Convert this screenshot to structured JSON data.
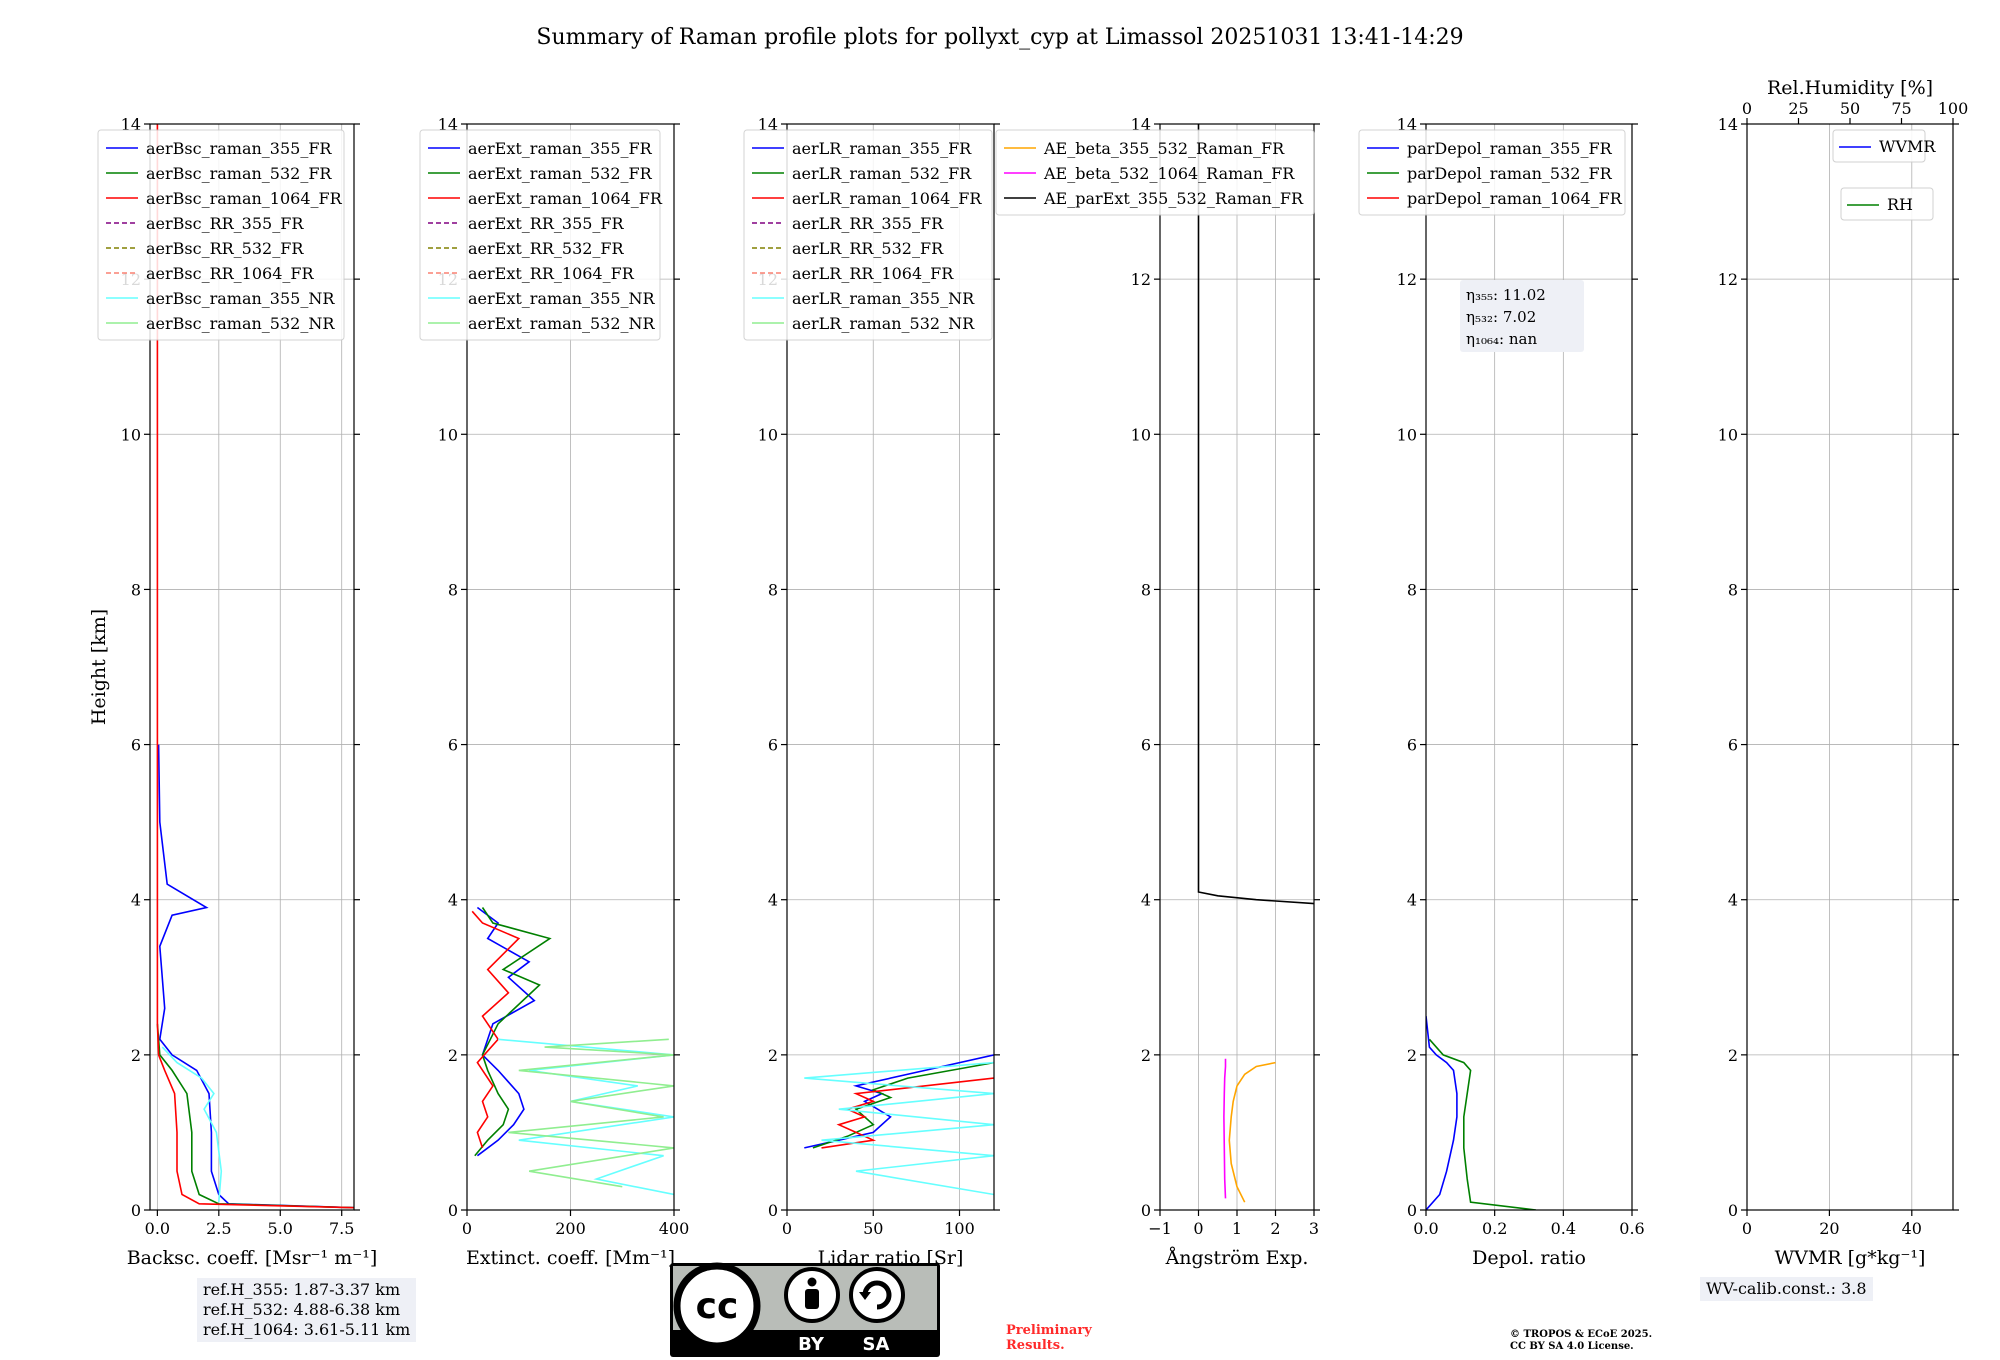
{
  "figure_title": "Summary of Raman profile plots for pollyxt_cyp at Limassol 20251031 13:41-14:29",
  "colors": {
    "blue": "#0000ff",
    "green": "#008000",
    "red": "#ff0000",
    "purple": "#800080",
    "olive": "#808000",
    "salmon": "#fa8072",
    "cyan": "#66ffff",
    "lightgreen": "#90ee90",
    "orange": "#ffa500",
    "magenta": "#ff00ff",
    "black": "#000000",
    "grid": "#b0b0b0"
  },
  "chart_data": [
    {
      "type": "line",
      "title": "",
      "xlabel": "Backsc. coeff. [Msr⁻¹ m⁻¹]",
      "ylabel": "Height [km]",
      "xlim": [
        -0.3,
        8.0
      ],
      "ylim": [
        0,
        14
      ],
      "xticks": [
        0.0,
        2.5,
        5.0,
        7.5
      ],
      "xtick_labels": [
        "0.0",
        "2.5",
        "5.0",
        "7.5"
      ],
      "yticks": [
        0,
        2,
        4,
        6,
        8,
        10,
        12,
        14
      ],
      "ytick_labels": [
        "0",
        "2",
        "4",
        "6",
        "8",
        "10",
        "12",
        "14"
      ],
      "grid": true,
      "legend_position": "top-left",
      "legend": [
        {
          "label": "aerBsc_raman_355_FR",
          "color": "#0000ff",
          "style": "solid"
        },
        {
          "label": "aerBsc_raman_532_FR",
          "color": "#008000",
          "style": "solid"
        },
        {
          "label": "aerBsc_raman_1064_FR",
          "color": "#ff0000",
          "style": "solid"
        },
        {
          "label": "aerBsc_RR_355_FR",
          "color": "#800080",
          "style": "dashed"
        },
        {
          "label": "aerBsc_RR_532_FR",
          "color": "#808000",
          "style": "dashed"
        },
        {
          "label": "aerBsc_RR_1064_FR",
          "color": "#fa8072",
          "style": "dashed"
        },
        {
          "label": "aerBsc_raman_355_NR",
          "color": "#66ffff",
          "style": "solid"
        },
        {
          "label": "aerBsc_raman_532_NR",
          "color": "#90ee90",
          "style": "solid"
        }
      ],
      "series": [
        {
          "name": "aerBsc_raman_355_FR",
          "color": "#0000ff",
          "x": [
            8,
            2.9,
            2.5,
            2.2,
            2.2,
            2.1,
            1.6,
            0.6,
            0.1,
            0.3,
            0.1,
            0.6,
            2,
            0.4,
            0.1,
            0.05
          ],
          "y": [
            0.03,
            0.08,
            0.2,
            0.5,
            1.0,
            1.5,
            1.8,
            2.0,
            2.2,
            2.6,
            3.4,
            3.8,
            3.9,
            4.2,
            5,
            6
          ]
        },
        {
          "name": "aerBsc_raman_532_FR",
          "color": "#008000",
          "x": [
            8,
            2.5,
            1.7,
            1.4,
            1.4,
            1.2,
            0.6,
            0.1,
            0.0
          ],
          "y": [
            0.03,
            0.08,
            0.2,
            0.5,
            1.0,
            1.5,
            1.8,
            2.0,
            2.4
          ]
        },
        {
          "name": "aerBsc_raman_1064_FR",
          "color": "#ff0000",
          "x": [
            8,
            1.7,
            1.0,
            0.8,
            0.8,
            0.7,
            0.3,
            0.05,
            0.0,
            0.0
          ],
          "y": [
            0.03,
            0.08,
            0.2,
            0.5,
            1.0,
            1.5,
            1.8,
            2.0,
            2.4,
            14
          ]
        },
        {
          "name": "aerBsc_raman_355_NR",
          "color": "#66ffff",
          "x": [
            2.5,
            2.6,
            2.4,
            1.9,
            2.3,
            1.8,
            0.8,
            0.2
          ],
          "y": [
            0.1,
            0.5,
            1.0,
            1.3,
            1.5,
            1.7,
            1.9,
            2.1
          ]
        }
      ]
    },
    {
      "type": "line",
      "title": "",
      "xlabel": "Extinct. coeff. [Mm⁻¹]",
      "ylabel": "",
      "xlim": [
        0,
        400
      ],
      "ylim": [
        0,
        14
      ],
      "xticks": [
        0,
        200,
        400
      ],
      "xtick_labels": [
        "0",
        "200",
        "400"
      ],
      "yticks": [
        0,
        2,
        4,
        6,
        8,
        10,
        12,
        14
      ],
      "ytick_labels": [
        "0",
        "2",
        "4",
        "6",
        "8",
        "10",
        "12",
        "14"
      ],
      "grid": true,
      "legend_position": "top-left",
      "legend": [
        {
          "label": "aerExt_raman_355_FR",
          "color": "#0000ff",
          "style": "solid"
        },
        {
          "label": "aerExt_raman_532_FR",
          "color": "#008000",
          "style": "solid"
        },
        {
          "label": "aerExt_raman_1064_FR",
          "color": "#ff0000",
          "style": "solid"
        },
        {
          "label": "aerExt_RR_355_FR",
          "color": "#800080",
          "style": "dashed"
        },
        {
          "label": "aerExt_RR_532_FR",
          "color": "#808000",
          "style": "dashed"
        },
        {
          "label": "aerExt_RR_1064_FR",
          "color": "#fa8072",
          "style": "dashed"
        },
        {
          "label": "aerExt_raman_355_NR",
          "color": "#66ffff",
          "style": "solid"
        },
        {
          "label": "aerExt_raman_532_NR",
          "color": "#90ee90",
          "style": "solid"
        }
      ],
      "series": [
        {
          "name": "aerExt_raman_355_FR",
          "color": "#0000ff",
          "x": [
            20,
            60,
            90,
            110,
            100,
            60,
            30,
            50,
            130,
            80,
            120,
            40,
            60,
            20
          ],
          "y": [
            0.7,
            0.9,
            1.1,
            1.3,
            1.5,
            1.8,
            2.0,
            2.4,
            2.7,
            3.0,
            3.2,
            3.5,
            3.7,
            3.9
          ]
        },
        {
          "name": "aerExt_raman_532_FR",
          "color": "#008000",
          "x": [
            15,
            40,
            70,
            80,
            60,
            40,
            30,
            60,
            140,
            70,
            160,
            50,
            30
          ],
          "y": [
            0.7,
            0.9,
            1.1,
            1.3,
            1.5,
            1.8,
            2.0,
            2.4,
            2.9,
            3.1,
            3.5,
            3.7,
            3.9
          ]
        },
        {
          "name": "aerExt_raman_1064_FR",
          "color": "#ff0000",
          "x": [
            30,
            20,
            40,
            30,
            50,
            20,
            60,
            30,
            80,
            40,
            100,
            30,
            10
          ],
          "y": [
            0.8,
            1.0,
            1.2,
            1.4,
            1.6,
            1.9,
            2.2,
            2.5,
            2.8,
            3.1,
            3.5,
            3.7,
            3.85
          ]
        },
        {
          "name": "aerExt_raman_355_NR",
          "color": "#66ffff",
          "x": [
            400,
            250,
            380,
            100,
            400,
            200,
            330,
            120,
            400,
            60
          ],
          "y": [
            0.2,
            0.4,
            0.7,
            0.9,
            1.2,
            1.4,
            1.6,
            1.8,
            2.0,
            2.2
          ]
        },
        {
          "name": "aerExt_raman_532_NR",
          "color": "#90ee90",
          "x": [
            300,
            120,
            400,
            80,
            380,
            200,
            400,
            100,
            400,
            150,
            390
          ],
          "y": [
            0.3,
            0.5,
            0.8,
            1.0,
            1.2,
            1.4,
            1.6,
            1.8,
            2.0,
            2.1,
            2.2
          ]
        }
      ]
    },
    {
      "type": "line",
      "title": "",
      "xlabel": "Lidar ratio [Sr]",
      "ylabel": "",
      "xlim": [
        0,
        120
      ],
      "ylim": [
        0,
        14
      ],
      "xticks": [
        0,
        50,
        100
      ],
      "xtick_labels": [
        "0",
        "50",
        "100"
      ],
      "yticks": [
        0,
        2,
        4,
        6,
        8,
        10,
        12,
        14
      ],
      "ytick_labels": [
        "0",
        "2",
        "4",
        "6",
        "8",
        "10",
        "12",
        "14"
      ],
      "grid": true,
      "legend_position": "top-left",
      "legend": [
        {
          "label": "aerLR_raman_355_FR",
          "color": "#0000ff",
          "style": "solid"
        },
        {
          "label": "aerLR_raman_532_FR",
          "color": "#008000",
          "style": "solid"
        },
        {
          "label": "aerLR_raman_1064_FR",
          "color": "#ff0000",
          "style": "solid"
        },
        {
          "label": "aerLR_RR_355_FR",
          "color": "#800080",
          "style": "dashed"
        },
        {
          "label": "aerLR_RR_532_FR",
          "color": "#808000",
          "style": "dashed"
        },
        {
          "label": "aerLR_RR_1064_FR",
          "color": "#fa8072",
          "style": "dashed"
        },
        {
          "label": "aerLR_raman_355_NR",
          "color": "#66ffff",
          "style": "solid"
        },
        {
          "label": "aerLR_raman_532_NR",
          "color": "#90ee90",
          "style": "solid"
        }
      ],
      "series": [
        {
          "name": "aerLR_raman_355_FR",
          "color": "#0000ff",
          "x": [
            10,
            30,
            50,
            60,
            45,
            55,
            40,
            80,
            120
          ],
          "y": [
            0.8,
            0.9,
            1.0,
            1.2,
            1.4,
            1.5,
            1.6,
            1.8,
            2.0
          ]
        },
        {
          "name": "aerLR_raman_532_FR",
          "color": "#008000",
          "x": [
            15,
            35,
            50,
            40,
            60,
            50,
            70,
            120
          ],
          "y": [
            0.8,
            0.95,
            1.1,
            1.3,
            1.45,
            1.55,
            1.7,
            1.9
          ]
        },
        {
          "name": "aerLR_raman_1064_FR",
          "color": "#ff0000",
          "x": [
            20,
            50,
            40,
            30,
            45,
            35,
            50,
            40,
            120
          ],
          "y": [
            0.8,
            0.9,
            1.0,
            1.1,
            1.2,
            1.3,
            1.4,
            1.5,
            1.7
          ]
        },
        {
          "name": "aerLR_raman_355_NR",
          "color": "#66ffff",
          "x": [
            120,
            40,
            120,
            20,
            120,
            30,
            120,
            10,
            120
          ],
          "y": [
            0.2,
            0.5,
            0.7,
            0.9,
            1.1,
            1.3,
            1.5,
            1.7,
            1.9
          ]
        }
      ]
    },
    {
      "type": "line",
      "title": "",
      "xlabel": "Ångström Exp.",
      "ylabel": "",
      "xlim": [
        -1,
        3
      ],
      "ylim": [
        0,
        14
      ],
      "xticks": [
        -1,
        0,
        1,
        2,
        3
      ],
      "xtick_labels": [
        "−1",
        "0",
        "1",
        "2",
        "3"
      ],
      "yticks": [
        0,
        2,
        4,
        6,
        8,
        10,
        12,
        14
      ],
      "ytick_labels": [
        "0",
        "2",
        "4",
        "6",
        "8",
        "10",
        "12",
        "14"
      ],
      "grid": true,
      "legend_position": "top",
      "legend": [
        {
          "label": "AE_beta_355_532_Raman_FR",
          "color": "#ffa500",
          "style": "solid"
        },
        {
          "label": "AE_beta_532_1064_Raman_FR",
          "color": "#ff00ff",
          "style": "solid"
        },
        {
          "label": "AE_parExt_355_532_Raman_FR",
          "color": "#000000",
          "style": "solid"
        }
      ],
      "series": [
        {
          "name": "AE_beta_355_532_Raman_FR",
          "color": "#ffa500",
          "x": [
            1.2,
            1.0,
            0.85,
            0.8,
            0.85,
            0.9,
            1.0,
            1.2,
            1.5,
            2.0
          ],
          "y": [
            0.1,
            0.3,
            0.6,
            0.9,
            1.2,
            1.4,
            1.6,
            1.75,
            1.85,
            1.9
          ]
        },
        {
          "name": "AE_beta_532_1064_Raman_FR",
          "color": "#ff00ff",
          "x": [
            0.7,
            0.68,
            0.67,
            0.66,
            0.67,
            0.68,
            0.7,
            0.7
          ],
          "y": [
            0.15,
            0.4,
            0.8,
            1.2,
            1.5,
            1.7,
            1.85,
            1.95
          ]
        },
        {
          "name": "AE_parExt_355_532_Raman_FR",
          "color": "#000000",
          "x": [
            0.0,
            0.0,
            0.0,
            0.5,
            1.5,
            3.0
          ],
          "y": [
            14,
            6,
            4.1,
            4.05,
            4.0,
            3.95
          ]
        }
      ]
    },
    {
      "type": "line",
      "title": "",
      "xlabel": "Depol. ratio",
      "ylabel": "",
      "xlim": [
        0,
        0.6
      ],
      "ylim": [
        0,
        14
      ],
      "xticks": [
        0.0,
        0.2,
        0.4,
        0.6
      ],
      "xtick_labels": [
        "0.0",
        "0.2",
        "0.4",
        "0.6"
      ],
      "yticks": [
        0,
        2,
        4,
        6,
        8,
        10,
        12,
        14
      ],
      "ytick_labels": [
        "0",
        "2",
        "4",
        "6",
        "8",
        "10",
        "12",
        "14"
      ],
      "grid": true,
      "legend_position": "top-left",
      "legend": [
        {
          "label": "parDepol_raman_355_FR",
          "color": "#0000ff",
          "style": "solid"
        },
        {
          "label": "parDepol_raman_532_FR",
          "color": "#008000",
          "style": "solid"
        },
        {
          "label": "parDepol_raman_1064_FR",
          "color": "#ff0000",
          "style": "solid"
        }
      ],
      "annotation": {
        "lines": [
          "η₃₅₅: 11.02",
          "η₅₃₂: 7.02",
          "η₁₀₆₄: nan"
        ]
      },
      "series": [
        {
          "name": "parDepol_raman_355_FR",
          "color": "#0000ff",
          "x": [
            0.0,
            0.04,
            0.06,
            0.08,
            0.09,
            0.09,
            0.08,
            0.06,
            0.03,
            0.01,
            0.0
          ],
          "y": [
            0.0,
            0.2,
            0.5,
            0.9,
            1.2,
            1.5,
            1.8,
            1.9,
            2.0,
            2.1,
            2.5
          ]
        },
        {
          "name": "parDepol_raman_532_FR",
          "color": "#008000",
          "x": [
            0.32,
            0.13,
            0.12,
            0.11,
            0.11,
            0.12,
            0.13,
            0.11,
            0.05,
            0.01
          ],
          "y": [
            0.0,
            0.1,
            0.4,
            0.8,
            1.2,
            1.5,
            1.8,
            1.9,
            2.0,
            2.2
          ]
        }
      ]
    },
    {
      "type": "line",
      "title": "",
      "xlabel": "WVMR [g*kg⁻¹]",
      "ylabel": "",
      "top_axis_label": "Rel.Humidity [%]",
      "xlim": [
        0,
        50
      ],
      "ylim": [
        0,
        14
      ],
      "xticks": [
        0,
        20,
        40
      ],
      "xtick_labels": [
        "0",
        "20",
        "40"
      ],
      "top_xlim": [
        0,
        100
      ],
      "top_xticks": [
        0,
        25,
        50,
        75,
        100
      ],
      "top_xtick_labels": [
        "0",
        "25",
        "50",
        "75",
        "100"
      ],
      "yticks": [
        0,
        2,
        4,
        6,
        8,
        10,
        12,
        14
      ],
      "ytick_labels": [
        "0",
        "2",
        "4",
        "6",
        "8",
        "10",
        "12",
        "14"
      ],
      "grid": true,
      "legend_position": "top-right",
      "legend": [
        {
          "label": "WVMR",
          "color": "#0000ff",
          "style": "solid"
        },
        {
          "label": "RH",
          "color": "#008000",
          "style": "solid"
        }
      ],
      "series": []
    }
  ],
  "ref_heights": [
    "ref.H_355: 1.87-3.37 km",
    "ref.H_532: 4.88-6.38 km",
    "ref.H_1064: 3.61-5.11 km"
  ],
  "wv_calib": "WV-calib.const.: 3.8",
  "cc_license": {
    "cc": "cc",
    "by": "BY",
    "sa": "SA"
  },
  "preliminary": [
    "Preliminary",
    "Results."
  ],
  "copyright": [
    "© TROPOS & ECoE 2025.",
    "CC BY SA 4.0 License."
  ]
}
